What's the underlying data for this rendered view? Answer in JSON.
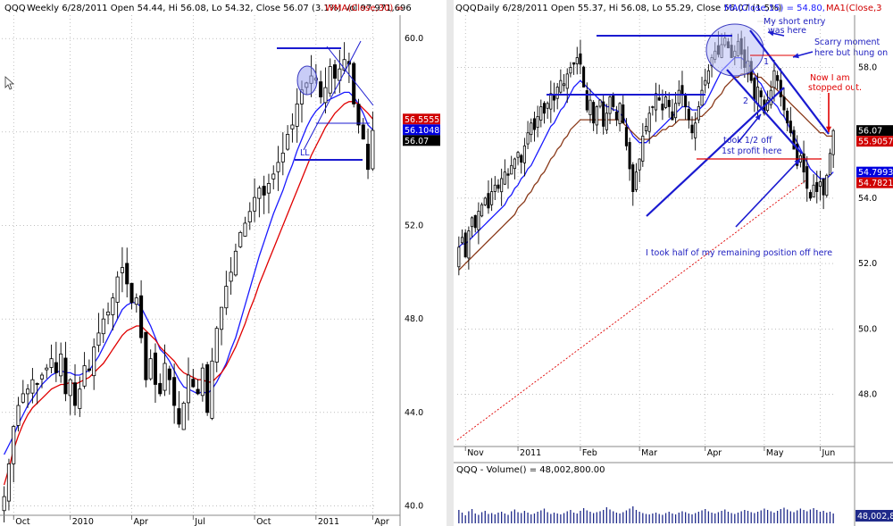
{
  "chart_data": [
    {
      "type": "candlestick",
      "panel": "weekly",
      "header": {
        "symbol": "QQQ",
        "title": "Weekly 6/28/2011 Open 54.44, Hi 56.08, Lo 54.32, Close 56.07 (3.1%) Vol 97,971,696",
        "indicator": "WMA(Close,30) ="
      },
      "y_ticks": [
        "60.0",
        "56.0",
        "52.0",
        "48.0",
        "44.0",
        "40.0"
      ],
      "y_tick_values": [
        60,
        56,
        52,
        48,
        44,
        40
      ],
      "ylim": [
        39.6,
        61
      ],
      "x_ticks": [
        "Oct",
        "2010",
        "Apr",
        "Jul",
        "Oct",
        "2011",
        "Apr"
      ],
      "x_tick_index": [
        2,
        14,
        27,
        40,
        53,
        66,
        78
      ],
      "price_tags": [
        {
          "label": "56.5555",
          "value": 56.5555,
          "color": "#d00000"
        },
        {
          "label": "56.1048",
          "value": 56.1048,
          "color": "#0000e0"
        },
        {
          "label": "56.07",
          "value": 56.07,
          "color": "#000000"
        }
      ],
      "closes": [
        40.4,
        41.8,
        43.4,
        44.3,
        44.8,
        45.0,
        45.4,
        45.2,
        45.6,
        45.9,
        46.3,
        45.7,
        46.5,
        44.8,
        45.4,
        44.3,
        45.0,
        46.0,
        45.8,
        46.8,
        47.4,
        48.0,
        48.3,
        48.9,
        49.8,
        50.2,
        49.5,
        48.7,
        48.9,
        47.2,
        45.4,
        46.3,
        45.2,
        44.8,
        46.1,
        45.4,
        44.3,
        43.5,
        44.4,
        45.6,
        45.1,
        44.8,
        45.9,
        44.0,
        46.2,
        47.6,
        48.5,
        49.4,
        50.0,
        50.9,
        51.7,
        52.1,
        52.6,
        53.2,
        53.6,
        53.3,
        53.8,
        54.2,
        54.7,
        55.1,
        55.9,
        56.3,
        57.2,
        57.8,
        58.1,
        58.4,
        58.3,
        57.5,
        57.9,
        58.8,
        58.3,
        58.7,
        59.1,
        58.9,
        57.2,
        56.3,
        55.7,
        54.4,
        56.07
      ],
      "series": [
        {
          "name": "MA",
          "color": "#1a1aff",
          "values": [
            42.2,
            42.6,
            43.0,
            43.5,
            43.9,
            44.3,
            44.6,
            44.9,
            45.2,
            45.4,
            45.6,
            45.7,
            45.8,
            45.7,
            45.7,
            45.6,
            45.6,
            45.7,
            45.8,
            46.1,
            46.4,
            46.8,
            47.2,
            47.6,
            48.0,
            48.4,
            48.6,
            48.7,
            48.7,
            48.5,
            48.1,
            47.7,
            47.2,
            46.7,
            46.5,
            46.2,
            45.8,
            45.4,
            45.1,
            45.0,
            44.9,
            44.8,
            44.9,
            44.8,
            45.0,
            45.3,
            45.7,
            46.1,
            46.7,
            47.2,
            47.9,
            48.6,
            49.3,
            50.0,
            50.7,
            51.3,
            51.9,
            52.5,
            53.0,
            53.5,
            54.1,
            54.6,
            55.2,
            55.7,
            56.2,
            56.6,
            56.9,
            57.1,
            57.3,
            57.4,
            57.5,
            57.6,
            57.7,
            57.7,
            57.5,
            57.2,
            56.8,
            56.3,
            56.1
          ]
        },
        {
          "name": "WMA(Close,30)",
          "color": "#e00000",
          "values": [
            40.9,
            41.6,
            42.4,
            43.0,
            43.5,
            43.9,
            44.2,
            44.4,
            44.6,
            44.8,
            45.0,
            45.1,
            45.2,
            45.2,
            45.3,
            45.2,
            45.3,
            45.4,
            45.5,
            45.7,
            45.9,
            46.1,
            46.4,
            46.7,
            47.0,
            47.3,
            47.5,
            47.6,
            47.7,
            47.7,
            47.5,
            47.3,
            47.1,
            46.8,
            46.6,
            46.4,
            46.2,
            45.9,
            45.7,
            45.6,
            45.5,
            45.4,
            45.4,
            45.3,
            45.3,
            45.5,
            45.7,
            46.0,
            46.4,
            46.8,
            47.3,
            47.8,
            48.4,
            48.9,
            49.5,
            50.0,
            50.5,
            51.0,
            51.5,
            52.0,
            52.5,
            53.0,
            53.5,
            54.0,
            54.5,
            55.0,
            55.4,
            55.8,
            56.2,
            56.5,
            56.8,
            57.0,
            57.2,
            57.3,
            57.3,
            57.2,
            57.0,
            56.8,
            56.56
          ]
        }
      ],
      "annotations": [
        {
          "text": "LL"
        }
      ]
    },
    {
      "type": "candlestick",
      "panel": "daily",
      "header": {
        "symbol": "QQQ",
        "title": "Daily 6/28/2011 Open 55.37, Hi 56.08, Lo 55.29, Close 56.07 (1.5%)",
        "indicator_blue": "MA(Close,15) = 54.80,",
        "indicator_red": "MA1(Close,3"
      },
      "y_ticks": [
        "58.0",
        "56.0",
        "54.0",
        "52.0",
        "50.0",
        "48.0"
      ],
      "y_tick_values": [
        58,
        56,
        54,
        52,
        50,
        48
      ],
      "ylim": [
        46.4,
        59.6
      ],
      "x_ticks": [
        "Nov",
        "2011",
        "Feb",
        "Mar",
        "Apr",
        "May",
        "Jun"
      ],
      "x_tick_index": [
        2,
        18,
        37,
        55,
        75,
        93,
        110
      ],
      "price_tags": [
        {
          "label": "56.07",
          "value": 56.07,
          "color": "#000000"
        },
        {
          "label": "55.9057",
          "value": 55.9057,
          "color": "#d00000"
        },
        {
          "label": "54.7993",
          "value": 54.7993,
          "color": "#0000e0"
        },
        {
          "label": "54.7821",
          "value": 54.7821,
          "color": "#d00000"
        }
      ],
      "closes": [
        52.5,
        52.8,
        52.2,
        53.0,
        53.4,
        53.1,
        53.6,
        53.8,
        54.0,
        53.7,
        54.2,
        54.4,
        54.3,
        54.6,
        54.8,
        54.7,
        55.0,
        55.2,
        55.4,
        55.1,
        55.6,
        56.0,
        56.3,
        56.1,
        56.5,
        56.8,
        56.6,
        56.9,
        57.2,
        57.0,
        57.4,
        57.6,
        57.5,
        57.8,
        58.0,
        58.1,
        58.3,
        58.1,
        57.4,
        56.7,
        57.0,
        56.3,
        56.8,
        57.0,
        56.2,
        56.6,
        57.1,
        56.8,
        56.4,
        56.9,
        56.3,
        55.6,
        54.9,
        54.2,
        54.8,
        55.2,
        55.9,
        56.2,
        56.6,
        56.8,
        57.2,
        57.0,
        56.7,
        57.1,
        56.8,
        56.4,
        56.9,
        57.3,
        57.2,
        56.8,
        56.4,
        56.0,
        56.3,
        56.8,
        57.3,
        57.6,
        57.9,
        58.3,
        58.5,
        58.4,
        58.7,
        58.9,
        58.6,
        58.3,
        58.5,
        58.8,
        58.4,
        58.0,
        58.2,
        57.6,
        57.0,
        57.4,
        57.1,
        56.6,
        57.0,
        57.3,
        57.9,
        57.6,
        57.1,
        56.7,
        56.3,
        56.0,
        55.5,
        55.0,
        55.3,
        54.8,
        54.3,
        54.0,
        54.4,
        54.2,
        54.5,
        54.1,
        54.7,
        55.37,
        56.07
      ],
      "series": [
        {
          "name": "MA(Close,15)",
          "color": "#1a1aff",
          "values": [
            52.5,
            52.6,
            52.6,
            52.7,
            52.8,
            52.9,
            53.0,
            53.1,
            53.2,
            53.3,
            53.4,
            53.5,
            53.6,
            53.7,
            53.8,
            54.0,
            54.1,
            54.3,
            54.4,
            54.6,
            54.7,
            54.9,
            55.0,
            55.2,
            55.4,
            55.6,
            55.8,
            56.0,
            56.2,
            56.3,
            56.5,
            56.7,
            56.8,
            57.0,
            57.2,
            57.4,
            57.5,
            57.6,
            57.5,
            57.4,
            57.3,
            57.2,
            57.1,
            57.0,
            56.9,
            56.8,
            56.8,
            56.7,
            56.7,
            56.6,
            56.5,
            56.3,
            56.1,
            55.9,
            55.8,
            55.7,
            55.7,
            55.7,
            55.8,
            55.9,
            56.0,
            56.1,
            56.2,
            56.3,
            56.4,
            56.5,
            56.6,
            56.7,
            56.8,
            56.8,
            56.8,
            56.7,
            56.7,
            56.7,
            56.8,
            56.9,
            57.1,
            57.3,
            57.5,
            57.7,
            57.9,
            58.0,
            58.1,
            58.2,
            58.3,
            58.3,
            58.3,
            58.2,
            58.1,
            58.0,
            57.8,
            57.6,
            57.5,
            57.3,
            57.1,
            57.0,
            56.9,
            56.8,
            56.6,
            56.5,
            56.3,
            56.1,
            55.9,
            55.7,
            55.5,
            55.3,
            55.1,
            54.9,
            54.8,
            54.7,
            54.6,
            54.6,
            54.6,
            54.7,
            54.8
          ]
        },
        {
          "name": "MA1",
          "color": "#8a3a1a",
          "values": [
            51.8,
            51.9,
            52.0,
            52.1,
            52.2,
            52.3,
            52.4,
            52.5,
            52.6,
            52.7,
            52.8,
            52.9,
            53.0,
            53.1,
            53.2,
            53.3,
            53.4,
            53.5,
            53.7,
            53.8,
            53.9,
            54.1,
            54.2,
            54.4,
            54.5,
            54.7,
            54.8,
            55.0,
            55.2,
            55.3,
            55.5,
            55.6,
            55.8,
            55.9,
            56.1,
            56.2,
            56.3,
            56.4,
            56.4,
            56.4,
            56.4,
            56.4,
            56.4,
            56.4,
            56.4,
            56.4,
            56.4,
            56.4,
            56.4,
            56.4,
            56.3,
            56.2,
            56.1,
            56.0,
            55.9,
            55.8,
            55.8,
            55.8,
            55.8,
            55.9,
            55.9,
            56.0,
            56.1,
            56.1,
            56.2,
            56.2,
            56.3,
            56.4,
            56.4,
            56.4,
            56.4,
            56.4,
            56.4,
            56.5,
            56.5,
            56.6,
            56.7,
            56.8,
            57.0,
            57.1,
            57.2,
            57.4,
            57.5,
            57.6,
            57.7,
            57.7,
            57.8,
            57.8,
            57.8,
            57.8,
            57.8,
            57.7,
            57.7,
            57.6,
            57.5,
            57.4,
            57.4,
            57.3,
            57.2,
            57.1,
            57.0,
            56.9,
            56.8,
            56.7,
            56.6,
            56.5,
            56.4,
            56.3,
            56.2,
            56.1,
            56.0,
            56.0,
            55.9,
            55.9,
            55.9
          ]
        },
        {
          "name": "long MA (dashed)",
          "color": "#e00000",
          "values": [
            46.6,
            46.8,
            47.0,
            47.2,
            47.4,
            47.6,
            47.8,
            48.0,
            48.2,
            48.4,
            48.6,
            48.8,
            49.0,
            49.2,
            49.4,
            49.6,
            49.8,
            50.0,
            50.2,
            50.4,
            50.6,
            50.8,
            51.0,
            51.2,
            51.4,
            51.6,
            51.8,
            52.0,
            52.2,
            52.4,
            52.6,
            52.8,
            53.0,
            53.2,
            53.4,
            53.6,
            53.8,
            54.0,
            54.2,
            54.4,
            54.6
          ]
        }
      ],
      "annotations": [
        {
          "text": "My short entry",
          "color": "#2020c0"
        },
        {
          "text": "was here",
          "color": "#2020c0"
        },
        {
          "text": "Scarry moment",
          "color": "#2020c0"
        },
        {
          "text": "here but hung on",
          "color": "#2020c0"
        },
        {
          "text": "Now I am",
          "color": "#e00000"
        },
        {
          "text": "stopped out.",
          "color": "#e00000"
        },
        {
          "text": "took 1/2 off",
          "color": "#2020c0"
        },
        {
          "text": "1st profit here",
          "color": "#2020c0"
        },
        {
          "text": "I took half of my remaining position off here",
          "color": "#2020c0"
        },
        {
          "text": "1",
          "color": "#2020c0"
        },
        {
          "text": "2",
          "color": "#2020c0"
        }
      ]
    },
    {
      "type": "bar",
      "panel": "volume",
      "header": {
        "title": "QQQ - Volume() = 48,002,800.00",
        "value_tag": "48,002,800"
      },
      "values": [
        30,
        24,
        18,
        27,
        32,
        22,
        19,
        25,
        28,
        21,
        23,
        20,
        24,
        26,
        22,
        19,
        27,
        31,
        25,
        23,
        28,
        24,
        20,
        22,
        26,
        29,
        33,
        25,
        21,
        24,
        22,
        20,
        23,
        27,
        30,
        24,
        22,
        28,
        34,
        29,
        26,
        23,
        25,
        27,
        30,
        36,
        31,
        27,
        24,
        22,
        25,
        29,
        33,
        38,
        30,
        26,
        23,
        21,
        20,
        22,
        24,
        21,
        19,
        23,
        26,
        22,
        20,
        24,
        27,
        25,
        22,
        20,
        23,
        26,
        29,
        32,
        27,
        24,
        22,
        25,
        28,
        31,
        26,
        23,
        21,
        24,
        27,
        30,
        28,
        25,
        23,
        26,
        29,
        33,
        30,
        27,
        24,
        28,
        32,
        35,
        31,
        27,
        25,
        29,
        33,
        30,
        27,
        31,
        34,
        30,
        26,
        28,
        24,
        26,
        22
      ]
    }
  ]
}
